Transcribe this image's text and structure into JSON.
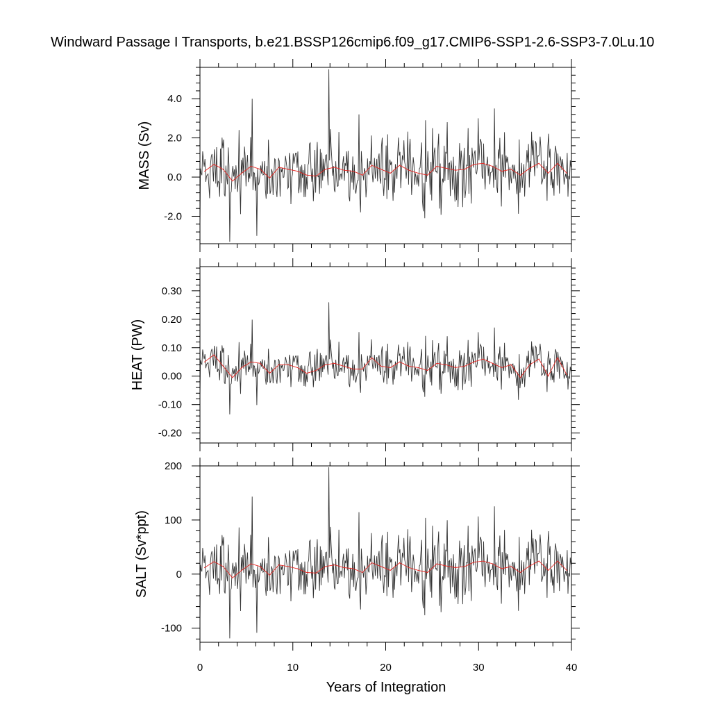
{
  "chart_data": {
    "title": "Windward Passage I Transports, b.e21.BSSP126cmip6.f09_g17.CMIP6-SSP1-2.6-SSP3-7.0Lu.10",
    "xlabel": "Years of Integration",
    "xlim": [
      0,
      40
    ],
    "xticks": [
      0,
      10,
      20,
      30,
      40
    ],
    "xtick_labels": [
      "0",
      "10",
      "20",
      "30",
      "40"
    ],
    "panels": [
      {
        "type": "line",
        "ylabel": "MASS (Sv)",
        "ylim": [
          -3.4,
          5.6
        ],
        "yticks": [
          -2.0,
          0.0,
          2.0,
          4.0
        ],
        "ytick_labels": [
          "-2.0",
          "0.0",
          "2.0",
          "4.0"
        ],
        "monthly_color": "#333333",
        "annual_color": "#e8231f",
        "annual": [
          {
            "x": 0.5,
            "y": 0.3
          },
          {
            "x": 1.5,
            "y": 0.65
          },
          {
            "x": 2.5,
            "y": 0.4
          },
          {
            "x": 3.5,
            "y": -0.2
          },
          {
            "x": 4.5,
            "y": 0.2
          },
          {
            "x": 5.5,
            "y": 0.55
          },
          {
            "x": 6.5,
            "y": 0.4
          },
          {
            "x": 7.5,
            "y": -0.05
          },
          {
            "x": 8.5,
            "y": 0.5
          },
          {
            "x": 9.5,
            "y": 0.4
          },
          {
            "x": 10.5,
            "y": 0.3
          },
          {
            "x": 11.5,
            "y": 0.1
          },
          {
            "x": 12.5,
            "y": 0.05
          },
          {
            "x": 13.5,
            "y": 0.4
          },
          {
            "x": 14.5,
            "y": 0.5
          },
          {
            "x": 15.5,
            "y": 0.35
          },
          {
            "x": 16.5,
            "y": 0.3
          },
          {
            "x": 17.5,
            "y": 0.1
          },
          {
            "x": 18.5,
            "y": 0.6
          },
          {
            "x": 19.5,
            "y": 0.4
          },
          {
            "x": 20.5,
            "y": 0.2
          },
          {
            "x": 21.5,
            "y": 0.6
          },
          {
            "x": 22.5,
            "y": 0.35
          },
          {
            "x": 23.5,
            "y": 0.2
          },
          {
            "x": 24.5,
            "y": 0.1
          },
          {
            "x": 25.5,
            "y": 0.55
          },
          {
            "x": 26.5,
            "y": 0.45
          },
          {
            "x": 27.5,
            "y": 0.35
          },
          {
            "x": 28.5,
            "y": 0.4
          },
          {
            "x": 29.5,
            "y": 0.65
          },
          {
            "x": 30.5,
            "y": 0.7
          },
          {
            "x": 31.5,
            "y": 0.55
          },
          {
            "x": 32.5,
            "y": 0.3
          },
          {
            "x": 33.5,
            "y": 0.4
          },
          {
            "x": 34.5,
            "y": 0.1
          },
          {
            "x": 35.5,
            "y": 0.45
          },
          {
            "x": 36.5,
            "y": 0.7
          },
          {
            "x": 37.5,
            "y": 0.2
          },
          {
            "x": 38.5,
            "y": 0.7
          },
          {
            "x": 39.5,
            "y": 0.2
          }
        ]
      },
      {
        "type": "line",
        "ylabel": "HEAT (PW)",
        "ylim": [
          -0.235,
          0.385
        ],
        "yticks": [
          -0.2,
          -0.1,
          0.0,
          0.1,
          0.2,
          0.3
        ],
        "ytick_labels": [
          "-0.20",
          "-0.10",
          "0.00",
          "0.10",
          "0.20",
          "0.30"
        ],
        "monthly_color": "#333333",
        "annual_color": "#e8231f",
        "annual": [
          {
            "x": 0.5,
            "y": 0.05
          },
          {
            "x": 1.5,
            "y": 0.075
          },
          {
            "x": 2.5,
            "y": 0.035
          },
          {
            "x": 3.5,
            "y": -0.005
          },
          {
            "x": 4.5,
            "y": 0.03
          },
          {
            "x": 5.5,
            "y": 0.05
          },
          {
            "x": 6.5,
            "y": 0.045
          },
          {
            "x": 7.5,
            "y": 0.01
          },
          {
            "x": 8.5,
            "y": 0.04
          },
          {
            "x": 9.5,
            "y": 0.04
          },
          {
            "x": 10.5,
            "y": 0.03
          },
          {
            "x": 11.5,
            "y": 0.01
          },
          {
            "x": 12.5,
            "y": 0.02
          },
          {
            "x": 13.5,
            "y": 0.04
          },
          {
            "x": 14.5,
            "y": 0.045
          },
          {
            "x": 15.5,
            "y": 0.035
          },
          {
            "x": 16.5,
            "y": 0.025
          },
          {
            "x": 17.5,
            "y": 0.025
          },
          {
            "x": 18.5,
            "y": 0.065
          },
          {
            "x": 19.5,
            "y": 0.035
          },
          {
            "x": 20.5,
            "y": 0.03
          },
          {
            "x": 21.5,
            "y": 0.05
          },
          {
            "x": 22.5,
            "y": 0.035
          },
          {
            "x": 23.5,
            "y": 0.03
          },
          {
            "x": 24.5,
            "y": 0.02
          },
          {
            "x": 25.5,
            "y": 0.045
          },
          {
            "x": 26.5,
            "y": 0.04
          },
          {
            "x": 27.5,
            "y": 0.03
          },
          {
            "x": 28.5,
            "y": 0.035
          },
          {
            "x": 29.5,
            "y": 0.05
          },
          {
            "x": 30.5,
            "y": 0.06
          },
          {
            "x": 31.5,
            "y": 0.045
          },
          {
            "x": 32.5,
            "y": 0.03
          },
          {
            "x": 33.5,
            "y": 0.04
          },
          {
            "x": 34.5,
            "y": -0.005
          },
          {
            "x": 35.5,
            "y": 0.04
          },
          {
            "x": 36.5,
            "y": 0.06
          },
          {
            "x": 37.5,
            "y": 0.0
          },
          {
            "x": 38.5,
            "y": 0.065
          },
          {
            "x": 39.5,
            "y": 0.005
          }
        ]
      },
      {
        "type": "line",
        "ylabel": "SALT (Sv*ppt)",
        "ylim": [
          -126,
          200
        ],
        "yticks": [
          -100,
          0,
          100,
          200
        ],
        "ytick_labels": [
          "-100",
          "0",
          "100",
          "200"
        ],
        "monthly_color": "#333333",
        "annual_color": "#e8231f",
        "annual": [
          {
            "x": 0.5,
            "y": 12
          },
          {
            "x": 1.5,
            "y": 23
          },
          {
            "x": 2.5,
            "y": 14
          },
          {
            "x": 3.5,
            "y": -7
          },
          {
            "x": 4.5,
            "y": 7
          },
          {
            "x": 5.5,
            "y": 19
          },
          {
            "x": 6.5,
            "y": 14
          },
          {
            "x": 7.5,
            "y": -2
          },
          {
            "x": 8.5,
            "y": 17
          },
          {
            "x": 9.5,
            "y": 14
          },
          {
            "x": 10.5,
            "y": 10
          },
          {
            "x": 11.5,
            "y": 3
          },
          {
            "x": 12.5,
            "y": 2
          },
          {
            "x": 13.5,
            "y": 14
          },
          {
            "x": 14.5,
            "y": 17
          },
          {
            "x": 15.5,
            "y": 12
          },
          {
            "x": 16.5,
            "y": 10
          },
          {
            "x": 17.5,
            "y": 3
          },
          {
            "x": 18.5,
            "y": 21
          },
          {
            "x": 19.5,
            "y": 14
          },
          {
            "x": 20.5,
            "y": 7
          },
          {
            "x": 21.5,
            "y": 21
          },
          {
            "x": 22.5,
            "y": 12
          },
          {
            "x": 23.5,
            "y": 7
          },
          {
            "x": 24.5,
            "y": 3
          },
          {
            "x": 25.5,
            "y": 19
          },
          {
            "x": 26.5,
            "y": 15
          },
          {
            "x": 27.5,
            "y": 12
          },
          {
            "x": 28.5,
            "y": 14
          },
          {
            "x": 29.5,
            "y": 22
          },
          {
            "x": 30.5,
            "y": 24
          },
          {
            "x": 31.5,
            "y": 19
          },
          {
            "x": 32.5,
            "y": 10
          },
          {
            "x": 33.5,
            "y": 14
          },
          {
            "x": 34.5,
            "y": 3
          },
          {
            "x": 35.5,
            "y": 15
          },
          {
            "x": 36.5,
            "y": 24
          },
          {
            "x": 37.5,
            "y": 7
          },
          {
            "x": 38.5,
            "y": 24
          },
          {
            "x": 39.5,
            "y": 7
          }
        ]
      }
    ]
  }
}
